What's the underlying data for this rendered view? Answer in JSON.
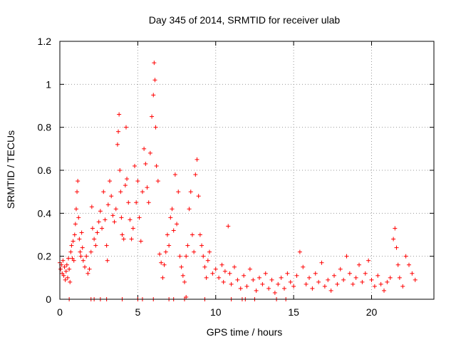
{
  "chart_data": {
    "type": "scatter",
    "title": "Day 345 of 2014, SRMTID for receiver ulab",
    "xlabel": "GPS time / hours",
    "ylabel": "SRMTID / TECUs",
    "xlim": [
      0,
      24
    ],
    "ylim": [
      0,
      1.2
    ],
    "grid": true,
    "marker": "+",
    "color": "#ff0000",
    "x_ticks": [
      0,
      5,
      10,
      15,
      20
    ],
    "x_tick_labels": [
      "0",
      "5",
      "10",
      "15",
      "20"
    ],
    "y_ticks": [
      0,
      0.2,
      0.4,
      0.6,
      0.8,
      1.0,
      1.2
    ],
    "y_tick_labels": [
      "0",
      "0.2",
      "0.4",
      "0.6",
      "0.8",
      "1",
      "1.2"
    ],
    "series": [
      {
        "name": "SRMTID",
        "points": [
          [
            0.0,
            0.17
          ],
          [
            0.05,
            0.14
          ],
          [
            0.1,
            0.16
          ],
          [
            0.15,
            0.12
          ],
          [
            0.2,
            0.18
          ],
          [
            0.25,
            0.11
          ],
          [
            0.3,
            0.15
          ],
          [
            0.35,
            0.09
          ],
          [
            0.4,
            0.13
          ],
          [
            0.45,
            0.16
          ],
          [
            0.5,
            0.1
          ],
          [
            0.55,
            0.19
          ],
          [
            0.6,
            0.14
          ],
          [
            0.65,
            0.08
          ],
          [
            0.7,
            0.22
          ],
          [
            0.75,
            0.25
          ],
          [
            0.8,
            0.19
          ],
          [
            0.85,
            0.27
          ],
          [
            0.9,
            0.18
          ],
          [
            0.95,
            0.3
          ],
          [
            1.0,
            0.35
          ],
          [
            1.05,
            0.42
          ],
          [
            1.1,
            0.5
          ],
          [
            1.15,
            0.55
          ],
          [
            1.2,
            0.38
          ],
          [
            1.25,
            0.28
          ],
          [
            1.3,
            0.22
          ],
          [
            1.35,
            0.2
          ],
          [
            1.4,
            0.31
          ],
          [
            1.45,
            0.24
          ],
          [
            1.5,
            0.18
          ],
          [
            1.6,
            0.15
          ],
          [
            1.7,
            0.2
          ],
          [
            1.8,
            0.12
          ],
          [
            1.9,
            0.14
          ],
          [
            2.0,
            0.22
          ],
          [
            2.05,
            0.43
          ],
          [
            2.1,
            0.33
          ],
          [
            2.2,
            0.28
          ],
          [
            2.3,
            0.25
          ],
          [
            2.4,
            0.31
          ],
          [
            2.5,
            0.36
          ],
          [
            2.6,
            0.41
          ],
          [
            2.7,
            0.33
          ],
          [
            2.8,
            0.5
          ],
          [
            2.9,
            0.37
          ],
          [
            3.0,
            0.25
          ],
          [
            3.05,
            0.18
          ],
          [
            3.1,
            0.44
          ],
          [
            3.2,
            0.55
          ],
          [
            3.3,
            0.48
          ],
          [
            3.4,
            0.39
          ],
          [
            3.5,
            0.36
          ],
          [
            3.6,
            0.42
          ],
          [
            3.7,
            0.72
          ],
          [
            3.75,
            0.78
          ],
          [
            3.8,
            0.86
          ],
          [
            3.85,
            0.6
          ],
          [
            3.9,
            0.5
          ],
          [
            3.95,
            0.38
          ],
          [
            4.0,
            0.3
          ],
          [
            4.1,
            0.28
          ],
          [
            4.2,
            0.53
          ],
          [
            4.25,
            0.8
          ],
          [
            4.3,
            0.56
          ],
          [
            4.4,
            0.45
          ],
          [
            4.5,
            0.37
          ],
          [
            4.6,
            0.28
          ],
          [
            4.7,
            0.33
          ],
          [
            4.8,
            0.62
          ],
          [
            4.9,
            0.45
          ],
          [
            5.0,
            0.55
          ],
          [
            5.1,
            0.38
          ],
          [
            5.2,
            0.27
          ],
          [
            5.3,
            0.5
          ],
          [
            5.4,
            0.7
          ],
          [
            5.5,
            0.63
          ],
          [
            5.6,
            0.52
          ],
          [
            5.7,
            0.45
          ],
          [
            5.8,
            0.68
          ],
          [
            5.9,
            0.85
          ],
          [
            6.0,
            0.95
          ],
          [
            6.05,
            1.1
          ],
          [
            6.1,
            1.02
          ],
          [
            6.15,
            0.8
          ],
          [
            6.2,
            0.62
          ],
          [
            6.3,
            0.55
          ],
          [
            6.4,
            0.21
          ],
          [
            6.5,
            0.17
          ],
          [
            6.6,
            0.1
          ],
          [
            6.7,
            0.16
          ],
          [
            6.8,
            0.22
          ],
          [
            6.9,
            0.3
          ],
          [
            7.0,
            0.25
          ],
          [
            7.1,
            0.38
          ],
          [
            7.2,
            0.42
          ],
          [
            7.3,
            0.32
          ],
          [
            7.4,
            0.58
          ],
          [
            7.5,
            0.35
          ],
          [
            7.6,
            0.5
          ],
          [
            7.7,
            0.2
          ],
          [
            7.8,
            0.15
          ],
          [
            7.9,
            0.11
          ],
          [
            8.0,
            0.08
          ],
          [
            8.1,
            0.2
          ],
          [
            8.2,
            0.25
          ],
          [
            8.3,
            0.42
          ],
          [
            8.4,
            0.5
          ],
          [
            8.5,
            0.3
          ],
          [
            8.6,
            0.22
          ],
          [
            8.7,
            0.58
          ],
          [
            8.8,
            0.65
          ],
          [
            8.9,
            0.48
          ],
          [
            9.0,
            0.3
          ],
          [
            9.1,
            0.25
          ],
          [
            9.2,
            0.2
          ],
          [
            9.3,
            0.15
          ],
          [
            9.4,
            0.1
          ],
          [
            9.5,
            0.18
          ],
          [
            9.6,
            0.22
          ],
          [
            9.8,
            0.12
          ],
          [
            10.0,
            0.14
          ],
          [
            10.2,
            0.1
          ],
          [
            10.4,
            0.16
          ],
          [
            10.5,
            0.08
          ],
          [
            10.6,
            0.13
          ],
          [
            10.8,
            0.34
          ],
          [
            10.9,
            0.12
          ],
          [
            11.0,
            0.07
          ],
          [
            11.2,
            0.15
          ],
          [
            11.4,
            0.09
          ],
          [
            11.6,
            0.05
          ],
          [
            11.8,
            0.11
          ],
          [
            12.0,
            0.06
          ],
          [
            12.2,
            0.14
          ],
          [
            12.4,
            0.09
          ],
          [
            12.6,
            0.04
          ],
          [
            12.8,
            0.1
          ],
          [
            13.0,
            0.07
          ],
          [
            13.2,
            0.12
          ],
          [
            13.4,
            0.05
          ],
          [
            13.6,
            0.09
          ],
          [
            13.8,
            0.03
          ],
          [
            14.0,
            0.07
          ],
          [
            14.2,
            0.1
          ],
          [
            14.4,
            0.05
          ],
          [
            14.6,
            0.12
          ],
          [
            14.8,
            0.08
          ],
          [
            15.0,
            0.06
          ],
          [
            15.2,
            0.11
          ],
          [
            15.4,
            0.22
          ],
          [
            15.6,
            0.15
          ],
          [
            15.8,
            0.07
          ],
          [
            16.0,
            0.1
          ],
          [
            16.2,
            0.05
          ],
          [
            16.4,
            0.12
          ],
          [
            16.6,
            0.08
          ],
          [
            16.8,
            0.17
          ],
          [
            17.0,
            0.06
          ],
          [
            17.2,
            0.09
          ],
          [
            17.4,
            0.04
          ],
          [
            17.6,
            0.11
          ],
          [
            17.8,
            0.07
          ],
          [
            18.0,
            0.14
          ],
          [
            18.2,
            0.09
          ],
          [
            18.4,
            0.2
          ],
          [
            18.6,
            0.12
          ],
          [
            18.8,
            0.07
          ],
          [
            19.0,
            0.1
          ],
          [
            19.2,
            0.16
          ],
          [
            19.4,
            0.08
          ],
          [
            19.6,
            0.12
          ],
          [
            19.8,
            0.18
          ],
          [
            20.0,
            0.09
          ],
          [
            20.2,
            0.06
          ],
          [
            20.4,
            0.11
          ],
          [
            20.6,
            0.07
          ],
          [
            20.8,
            0.04
          ],
          [
            21.0,
            0.08
          ],
          [
            21.2,
            0.1
          ],
          [
            21.4,
            0.28
          ],
          [
            21.5,
            0.33
          ],
          [
            21.6,
            0.24
          ],
          [
            21.7,
            0.16
          ],
          [
            21.8,
            0.1
          ],
          [
            22.0,
            0.06
          ],
          [
            22.2,
            0.2
          ],
          [
            22.4,
            0.16
          ],
          [
            22.6,
            0.12
          ],
          [
            22.8,
            0.09
          ],
          [
            2.0,
            0.0
          ],
          [
            2.2,
            0.0
          ],
          [
            2.6,
            0.0
          ],
          [
            3.0,
            0.0
          ],
          [
            4.0,
            0.0
          ],
          [
            5.0,
            0.0
          ],
          [
            5.3,
            0.0
          ],
          [
            6.0,
            0.0
          ],
          [
            7.0,
            0.0
          ],
          [
            7.3,
            0.0
          ],
          [
            8.0,
            0.0
          ],
          [
            8.1,
            0.01
          ],
          [
            9.3,
            0.0
          ],
          [
            11.0,
            0.0
          ],
          [
            11.7,
            0.0
          ],
          [
            11.9,
            0.0
          ],
          [
            12.5,
            0.0
          ],
          [
            13.9,
            0.0
          ],
          [
            14.5,
            0.0
          ],
          [
            0.6,
            0.0
          ]
        ]
      }
    ]
  }
}
